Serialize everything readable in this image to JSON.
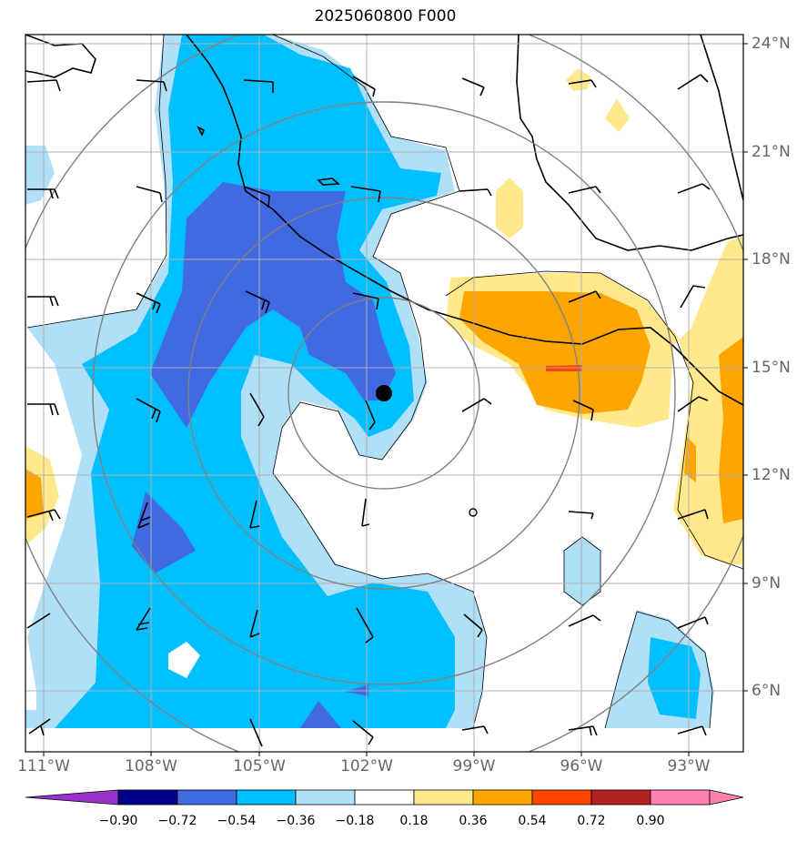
{
  "title": "2025060800 F000",
  "map": {
    "lon_ticks": [
      "111°W",
      "108°W",
      "105°W",
      "102°W",
      "99°W",
      "96°W",
      "93°W"
    ],
    "lat_ticks": [
      "24°N",
      "21°N",
      "18°N",
      "15°N",
      "12°N",
      "9°N",
      "6°N"
    ],
    "storm_center": {
      "lat": 14.3,
      "lon": -101.6
    },
    "range_rings": [
      "ring-1",
      "ring-2",
      "ring-3",
      "ring-4"
    ]
  },
  "colorbar": {
    "labels": [
      "−0.90",
      "−0.72",
      "−0.54",
      "−0.36",
      "−0.18",
      "0.18",
      "0.36",
      "0.54",
      "0.72",
      "0.90"
    ],
    "colors": [
      "#9932cc",
      "#00008b",
      "#4169e1",
      "#00bfff",
      "#b0e0f8",
      "#ffffff",
      "#ffe98c",
      "#ffa500",
      "#ff4500",
      "#b22222",
      "#ff80b0"
    ]
  },
  "shading": {
    "blue_light": "#b0e0f8",
    "blue_mid": "#00bfff",
    "blue_dark": "#4169e1",
    "yellow": "#ffe98c",
    "orange": "#ffa500",
    "red": "#ff4500"
  }
}
